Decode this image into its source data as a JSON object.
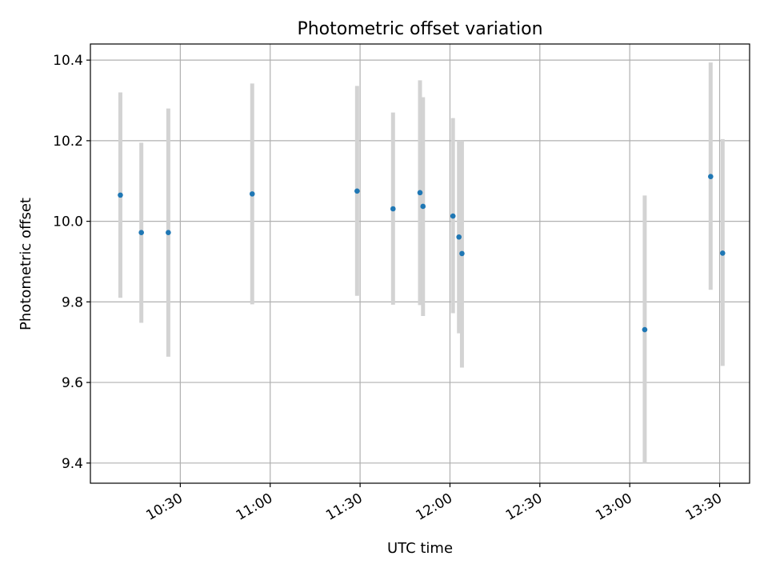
{
  "chart_data": {
    "type": "scatter",
    "title": "Photometric offset variation",
    "xlabel": "UTC time",
    "ylabel": "Photometric offset",
    "x_axis_type": "time",
    "xlim": [
      "10:00",
      "13:40"
    ],
    "ylim": [
      9.35,
      10.44
    ],
    "x_ticks": [
      "10:30",
      "11:00",
      "11:30",
      "12:00",
      "12:30",
      "13:00",
      "13:30"
    ],
    "y_ticks": [
      9.4,
      9.6,
      9.8,
      10.0,
      10.2,
      10.4
    ],
    "y_tick_labels": [
      "9.4",
      "9.6",
      "9.8",
      "10.0",
      "10.2",
      "10.4"
    ],
    "grid": true,
    "legend": false,
    "point_color": "#1f77b4",
    "errorbar_color": "#d3d3d3",
    "points": [
      {
        "x": "10:10",
        "y": 10.065,
        "ylow": 9.81,
        "yhigh": 10.32
      },
      {
        "x": "10:17",
        "y": 9.972,
        "ylow": 9.748,
        "yhigh": 10.195
      },
      {
        "x": "10:26",
        "y": 9.972,
        "ylow": 9.664,
        "yhigh": 10.28
      },
      {
        "x": "10:54",
        "y": 10.068,
        "ylow": 9.794,
        "yhigh": 10.342
      },
      {
        "x": "11:29",
        "y": 10.075,
        "ylow": 9.815,
        "yhigh": 10.336
      },
      {
        "x": "11:41",
        "y": 10.031,
        "ylow": 9.793,
        "yhigh": 10.27
      },
      {
        "x": "11:50",
        "y": 10.071,
        "ylow": 9.792,
        "yhigh": 10.35
      },
      {
        "x": "11:51",
        "y": 10.037,
        "ylow": 9.765,
        "yhigh": 10.308
      },
      {
        "x": "12:01",
        "y": 10.013,
        "ylow": 9.772,
        "yhigh": 10.256
      },
      {
        "x": "12:03",
        "y": 9.961,
        "ylow": 9.722,
        "yhigh": 10.2
      },
      {
        "x": "12:04",
        "y": 9.92,
        "ylow": 9.637,
        "yhigh": 10.2
      },
      {
        "x": "13:05",
        "y": 9.731,
        "ylow": 9.4,
        "yhigh": 10.064
      },
      {
        "x": "13:27",
        "y": 10.111,
        "ylow": 9.83,
        "yhigh": 10.394
      },
      {
        "x": "13:31",
        "y": 9.921,
        "ylow": 9.641,
        "yhigh": 10.204
      }
    ]
  }
}
